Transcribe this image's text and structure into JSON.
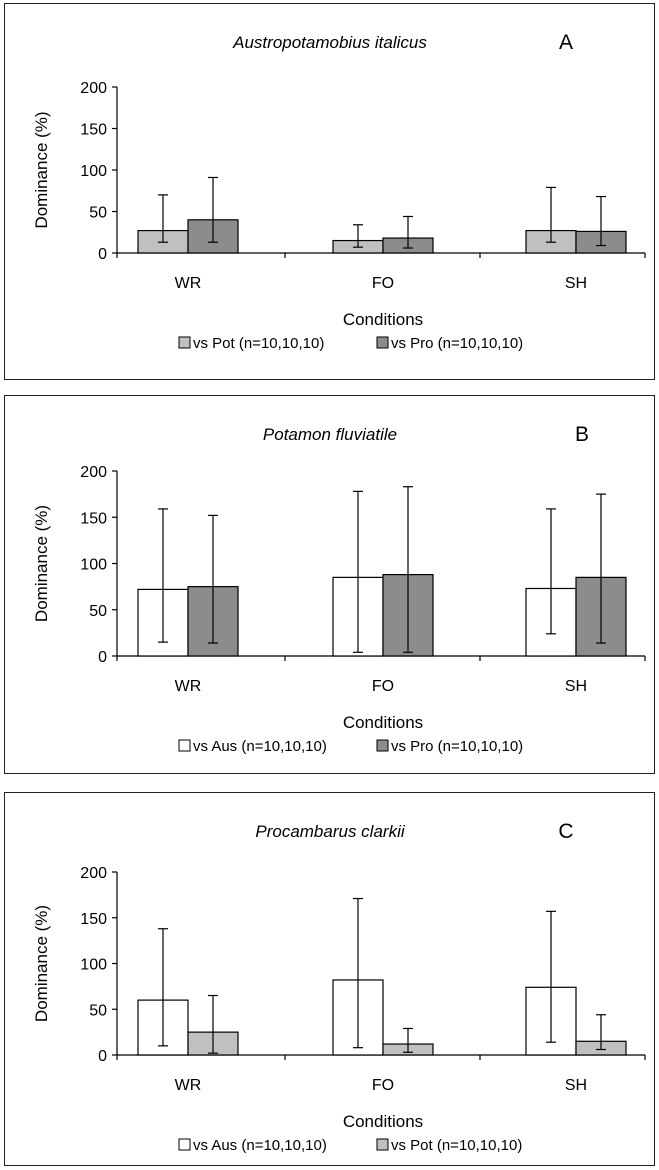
{
  "chart_data": [
    {
      "type": "bar",
      "title": "Austropotamobius italicus",
      "panel_letter": "A",
      "xlabel": "Conditions",
      "ylabel": "Dominance (%)",
      "ylim": [
        0,
        200
      ],
      "yticks": [
        "0",
        "50",
        "100",
        "150",
        "200"
      ],
      "categories": [
        "WR",
        "FO",
        "SH"
      ],
      "series": [
        {
          "name": "vs Pot (n=10,10,10)",
          "color": "#c0c0c0",
          "values": [
            27,
            15,
            27
          ],
          "err_low": [
            13,
            7,
            13
          ],
          "err_high": [
            70,
            34,
            79
          ]
        },
        {
          "name": "vs Pro (n=10,10,10)",
          "color": "#8c8c8c",
          "values": [
            40,
            18,
            26
          ],
          "err_low": [
            13,
            6,
            9
          ],
          "err_high": [
            91,
            44,
            68
          ]
        }
      ],
      "grid": false,
      "legend_position": "bottom"
    },
    {
      "type": "bar",
      "title": "Potamon fluviatile",
      "panel_letter": "B",
      "xlabel": "Conditions",
      "ylabel": "Dominance (%)",
      "ylim": [
        0,
        200
      ],
      "yticks": [
        "0",
        "50",
        "100",
        "150",
        "200"
      ],
      "categories": [
        "WR",
        "FO",
        "SH"
      ],
      "series": [
        {
          "name": "vs Aus (n=10,10,10)",
          "color": "#ffffff",
          "values": [
            72,
            85,
            73
          ],
          "err_low": [
            15,
            4,
            24
          ],
          "err_high": [
            159,
            178,
            159
          ]
        },
        {
          "name": "vs Pro (n=10,10,10)",
          "color": "#8c8c8c",
          "values": [
            75,
            88,
            85
          ],
          "err_low": [
            14,
            4,
            14
          ],
          "err_high": [
            152,
            183,
            175
          ]
        }
      ],
      "grid": false,
      "legend_position": "bottom"
    },
    {
      "type": "bar",
      "title": "Procambarus clarkii",
      "panel_letter": "C",
      "xlabel": "Conditions",
      "ylabel": "Dominance (%)",
      "ylim": [
        0,
        200
      ],
      "yticks": [
        "0",
        "50",
        "100",
        "150",
        "200"
      ],
      "categories": [
        "WR",
        "FO",
        "SH"
      ],
      "series": [
        {
          "name": "vs Aus (n=10,10,10)",
          "color": "#ffffff",
          "values": [
            60,
            82,
            74
          ],
          "err_low": [
            10,
            8,
            14
          ],
          "err_high": [
            138,
            171,
            157
          ]
        },
        {
          "name": "vs Pot (n=10,10,10)",
          "color": "#c0c0c0",
          "values": [
            25,
            12,
            15
          ],
          "err_low": [
            2,
            3,
            6
          ],
          "err_high": [
            65,
            29,
            44
          ]
        }
      ],
      "grid": false,
      "legend_position": "bottom"
    }
  ]
}
